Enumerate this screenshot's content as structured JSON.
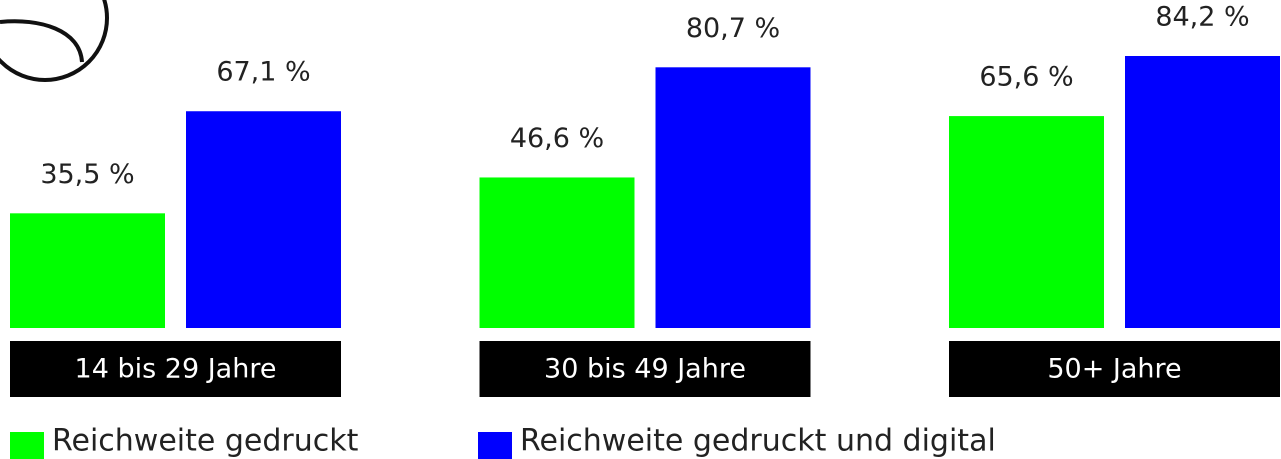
{
  "chart_data": {
    "type": "bar",
    "categories": [
      "14 bis 29 Jahre",
      "30 bis 49 Jahre",
      "50+ Jahre"
    ],
    "series": [
      {
        "name": "Reichweite gedruckt",
        "color": "#00ff00",
        "values": [
          35.5,
          46.6,
          65.6
        ],
        "value_labels": [
          "35,5 %",
          "46,6 %",
          "65,6 %"
        ]
      },
      {
        "name": "Reichweite gedruckt und digital",
        "color": "#0000ff",
        "values": [
          67.1,
          80.7,
          84.2
        ],
        "value_labels": [
          "67,1 %",
          "80,7 %",
          "84,2 %"
        ]
      }
    ]
  }
}
